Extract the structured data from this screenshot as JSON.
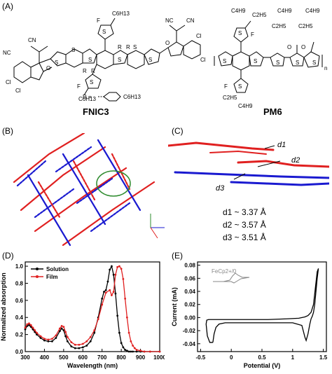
{
  "panels": {
    "a": "(A)",
    "b": "(B)",
    "c": "(C)",
    "d": "(D)",
    "e": "(E)"
  },
  "molecules": {
    "fnic3": "FNIC3",
    "pm6": "PM6",
    "r_def": "R =",
    "r_sub": "C6H13",
    "atoms": {
      "c6h13": "C6H13",
      "c4h9": "C4H9",
      "c2h5": "C2H5",
      "nc": "NC",
      "cn": "CN",
      "cl": "Cl",
      "s": "S",
      "f": "F",
      "o": "O",
      "r": "R",
      "n": "n"
    }
  },
  "stacking": {
    "d1_label": "d1",
    "d2_label": "d2",
    "d3_label": "d3",
    "d1": "d1 ~ 3.37 Å",
    "d2": "d2 ~ 3.57 Å",
    "d3": "d3 ~ 3.51 Å"
  },
  "colors": {
    "red": "#e02020",
    "blue": "#1a1ad0",
    "circle": "#2e8b2e",
    "gray_cv": "#888888"
  },
  "chart_data": [
    {
      "type": "line",
      "panel": "D",
      "xlabel": "Wavelength (nm)",
      "ylabel": "Normalized absorption",
      "xlim": [
        300,
        1000
      ],
      "ylim": [
        0.0,
        1.05
      ],
      "x_ticks": [
        300,
        400,
        500,
        600,
        700,
        800,
        900,
        1000
      ],
      "y_ticks": [
        0.0,
        0.2,
        0.4,
        0.6,
        0.8,
        1.0
      ],
      "legend_position": "top-left",
      "series": [
        {
          "name": "Solution",
          "color": "#000000",
          "x": [
            300,
            310,
            320,
            330,
            340,
            350,
            360,
            380,
            400,
            420,
            440,
            460,
            480,
            490,
            500,
            510,
            520,
            540,
            560,
            580,
            600,
            620,
            640,
            660,
            680,
            700,
            710,
            720,
            730,
            740,
            750,
            760,
            770,
            780,
            790,
            800,
            810,
            820,
            830,
            840,
            850,
            860,
            880,
            900,
            920,
            950,
            1000
          ],
          "y": [
            0.26,
            0.3,
            0.31,
            0.29,
            0.26,
            0.23,
            0.2,
            0.16,
            0.13,
            0.12,
            0.12,
            0.16,
            0.24,
            0.27,
            0.25,
            0.18,
            0.12,
            0.06,
            0.04,
            0.04,
            0.05,
            0.07,
            0.12,
            0.22,
            0.4,
            0.62,
            0.7,
            0.72,
            0.82,
            0.96,
            1.0,
            0.9,
            0.68,
            0.42,
            0.22,
            0.1,
            0.05,
            0.02,
            0.01,
            0.0,
            0.0,
            0.0,
            0.0,
            0.0,
            0.0,
            0.0,
            0.0
          ]
        },
        {
          "name": "Film",
          "color": "#e02020",
          "x": [
            300,
            310,
            320,
            330,
            340,
            350,
            360,
            380,
            400,
            420,
            440,
            460,
            480,
            490,
            500,
            510,
            520,
            540,
            560,
            580,
            600,
            620,
            640,
            660,
            680,
            700,
            720,
            740,
            750,
            760,
            770,
            780,
            790,
            800,
            810,
            820,
            830,
            840,
            850,
            860,
            870,
            880,
            900,
            920,
            950,
            1000
          ],
          "y": [
            0.28,
            0.32,
            0.33,
            0.31,
            0.28,
            0.25,
            0.22,
            0.18,
            0.15,
            0.14,
            0.15,
            0.19,
            0.27,
            0.3,
            0.29,
            0.23,
            0.17,
            0.11,
            0.08,
            0.08,
            0.09,
            0.12,
            0.17,
            0.25,
            0.38,
            0.55,
            0.69,
            0.72,
            0.66,
            0.7,
            0.9,
            0.99,
            1.0,
            0.97,
            0.85,
            0.62,
            0.4,
            0.22,
            0.12,
            0.07,
            0.04,
            0.02,
            0.01,
            0.0,
            0.0,
            0.0
          ]
        }
      ]
    },
    {
      "type": "line",
      "panel": "E",
      "xlabel": "Potential (V)",
      "ylabel": "Current (mA)",
      "xlim": [
        -0.55,
        1.55
      ],
      "ylim": [
        -0.052,
        0.085
      ],
      "x_ticks": [
        -0.5,
        0.0,
        0.5,
        1.0,
        1.5
      ],
      "y_ticks": [
        -0.04,
        -0.02,
        0.0,
        0.02,
        0.04,
        0.06,
        0.08
      ],
      "inset_label": "FeCp2+/0",
      "series": [
        {
          "name": "",
          "color": "#000000",
          "x": [
            -0.3,
            -0.35,
            -0.39,
            -0.41,
            -0.4,
            -0.37,
            -0.3,
            -0.2,
            0.0,
            0.3,
            0.6,
            0.9,
            1.1,
            1.2,
            1.25,
            1.3,
            1.34,
            1.37,
            1.4,
            1.42,
            1.4,
            1.38,
            1.36,
            1.34,
            1.32,
            1.3,
            1.28,
            1.25,
            1.22,
            1.2,
            1.15,
            1.0,
            0.7,
            0.4,
            0.1,
            -0.1,
            -0.2,
            -0.25,
            -0.28,
            -0.3
          ],
          "y": [
            -0.038,
            -0.038,
            -0.028,
            -0.01,
            -0.004,
            -0.003,
            -0.003,
            -0.003,
            -0.003,
            -0.003,
            -0.003,
            -0.002,
            -0.001,
            0.001,
            0.003,
            0.008,
            0.02,
            0.045,
            0.07,
            0.075,
            0.06,
            0.04,
            0.02,
            0.008,
            0.002,
            -0.002,
            -0.01,
            -0.025,
            -0.035,
            -0.03,
            -0.012,
            -0.008,
            -0.008,
            -0.008,
            -0.008,
            -0.008,
            -0.01,
            -0.015,
            -0.025,
            -0.038
          ]
        }
      ]
    }
  ]
}
